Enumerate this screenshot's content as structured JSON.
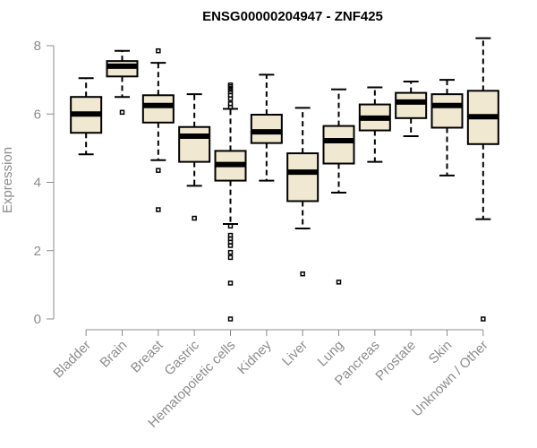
{
  "chart_data": {
    "type": "boxplot",
    "title": "ENSG00000204947 - ZNF425",
    "xlabel": "",
    "ylabel": "Expression",
    "ylim": [
      0,
      8.3
    ],
    "yticks": [
      0,
      2,
      4,
      6,
      8
    ],
    "box_fill": "#f0e8d0",
    "categories": [
      "Bladder",
      "Brain",
      "Breast",
      "Gastric",
      "Hematopoietic cells",
      "Kidney",
      "Liver",
      "Lung",
      "Pancreas",
      "Prostate",
      "Skin",
      "Unknown / Other"
    ],
    "boxes": [
      {
        "category": "Bladder",
        "low": 4.82,
        "q1": 5.45,
        "median": 6.0,
        "q3": 6.5,
        "high": 7.05,
        "outliers": []
      },
      {
        "category": "Brain",
        "low": 6.5,
        "q1": 7.1,
        "median": 7.4,
        "q3": 7.55,
        "high": 7.85,
        "outliers": [
          6.05
        ]
      },
      {
        "category": "Breast",
        "low": 4.65,
        "q1": 5.75,
        "median": 6.25,
        "q3": 6.55,
        "high": 7.5,
        "outliers": [
          7.85,
          4.35,
          3.2
        ]
      },
      {
        "category": "Gastric",
        "low": 3.9,
        "q1": 4.6,
        "median": 5.35,
        "q3": 5.62,
        "high": 6.58,
        "outliers": [
          2.95
        ]
      },
      {
        "category": "Hematopoietic cells",
        "low": 2.78,
        "q1": 4.05,
        "median": 4.52,
        "q3": 4.92,
        "high": 6.15,
        "outliers": [
          6.2,
          6.3,
          6.45,
          6.55,
          6.65,
          6.72,
          6.8,
          6.85,
          2.72,
          2.45,
          2.35,
          2.25,
          2.15,
          1.95,
          1.8,
          1.05,
          0.0
        ]
      },
      {
        "category": "Kidney",
        "low": 4.05,
        "q1": 5.15,
        "median": 5.48,
        "q3": 5.98,
        "high": 7.15,
        "outliers": []
      },
      {
        "category": "Liver",
        "low": 2.65,
        "q1": 3.45,
        "median": 4.3,
        "q3": 4.85,
        "high": 6.18,
        "outliers": [
          1.32
        ]
      },
      {
        "category": "Lung",
        "low": 3.7,
        "q1": 4.55,
        "median": 5.22,
        "q3": 5.65,
        "high": 6.72,
        "outliers": [
          1.08
        ]
      },
      {
        "category": "Pancreas",
        "low": 4.6,
        "q1": 5.52,
        "median": 5.88,
        "q3": 6.28,
        "high": 6.78,
        "outliers": []
      },
      {
        "category": "Prostate",
        "low": 5.35,
        "q1": 5.88,
        "median": 6.35,
        "q3": 6.62,
        "high": 6.95,
        "outliers": []
      },
      {
        "category": "Skin",
        "low": 4.2,
        "q1": 5.6,
        "median": 6.25,
        "q3": 6.58,
        "high": 7.0,
        "outliers": []
      },
      {
        "category": "Unknown / Other",
        "low": 2.92,
        "q1": 5.12,
        "median": 5.92,
        "q3": 6.68,
        "high": 8.22,
        "outliers": [
          0.0
        ]
      }
    ]
  }
}
